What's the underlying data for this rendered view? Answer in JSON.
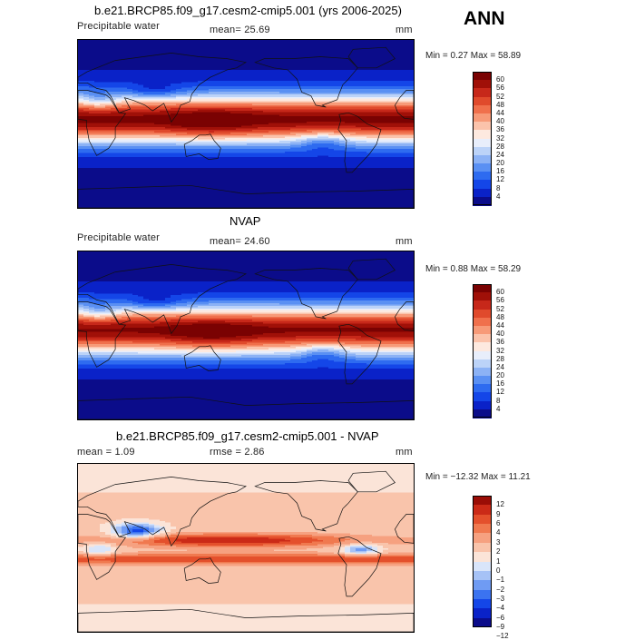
{
  "season": "ANN",
  "colors": {
    "wet_scale": [
      "#0b0c8a",
      "#0a22c8",
      "#1446e8",
      "#2e6bf0",
      "#5a90f3",
      "#8cb2f5",
      "#bcd3f8",
      "#e8eefb",
      "#fde9df",
      "#fbc3ab",
      "#f79a78",
      "#f0704c",
      "#e04a2c",
      "#c7281a",
      "#a01008",
      "#7a0202"
    ],
    "diff_scale": [
      "#0b0c8a",
      "#0a22c8",
      "#1446e8",
      "#3b73f0",
      "#6f9bf3",
      "#a6c2f6",
      "#d9e5fa",
      "#fbe4d8",
      "#f9c4ab",
      "#f6a180",
      "#f0794f",
      "#e4502c",
      "#cb2a17",
      "#9a0d06"
    ]
  },
  "panels": [
    {
      "id": "model",
      "title": "b.e21.BRCP85.f09_g17.cesm2-cmip5.001 (yrs 2006-2025)",
      "left_label": "Precipitable water",
      "center_label": "mean=  25.69",
      "unit": "mm",
      "minmax": "Min =   0.27 Max =  58.89",
      "colorbar_ticks": [
        "60",
        "56",
        "52",
        "48",
        "44",
        "40",
        "36",
        "32",
        "28",
        "24",
        "20",
        "16",
        "12",
        "8",
        "4"
      ]
    },
    {
      "id": "obs",
      "title": "NVAP",
      "left_label": "Precipitable water",
      "center_label": "mean=  24.60",
      "unit": "mm",
      "minmax": "Min =   0.88 Max =  58.29",
      "colorbar_ticks": [
        "60",
        "56",
        "52",
        "48",
        "44",
        "40",
        "36",
        "32",
        "28",
        "24",
        "20",
        "16",
        "12",
        "8",
        "4"
      ]
    },
    {
      "id": "diff",
      "title": "b.e21.BRCP85.f09_g17.cesm2-cmip5.001 - NVAP",
      "left_label": "mean =   1.09",
      "center_label": "rmse =   2.86",
      "unit": "mm",
      "minmax": "Min = −12.32 Max =  11.21",
      "colorbar_ticks": [
        "12",
        "9",
        "6",
        "4",
        "3",
        "2",
        "1",
        "0",
        "−1",
        "−2",
        "−3",
        "−4",
        "−6",
        "−9",
        "−12"
      ]
    }
  ]
}
